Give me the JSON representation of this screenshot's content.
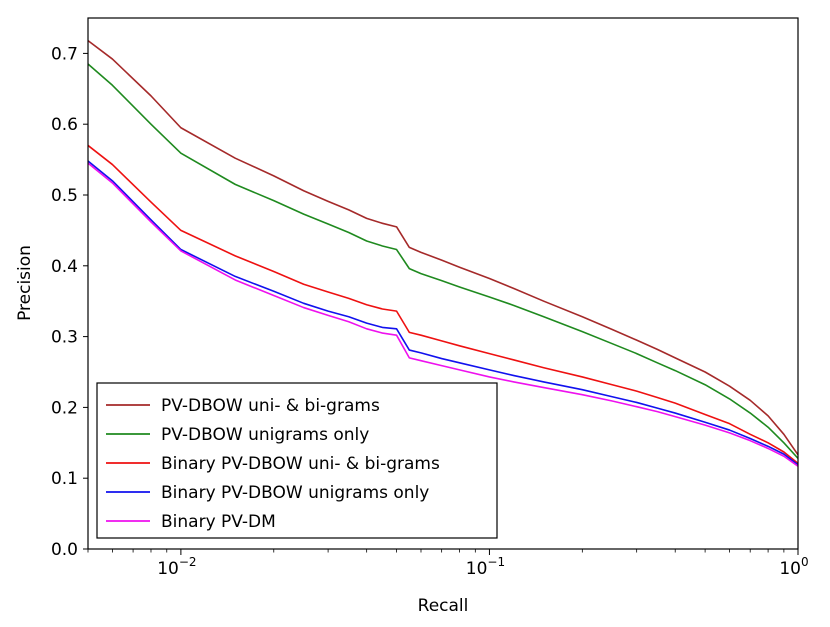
{
  "chart_data": {
    "type": "line",
    "title": "",
    "xlabel": "Recall",
    "ylabel": "Precision",
    "xscale": "log",
    "xlim": [
      0.005,
      1.0
    ],
    "ylim": [
      0.0,
      0.75
    ],
    "grid": false,
    "legend_position": "lower-left",
    "x_ticks": [
      {
        "value": 0.01,
        "base": "10",
        "exp": "−2"
      },
      {
        "value": 0.1,
        "base": "10",
        "exp": "−1"
      },
      {
        "value": 1.0,
        "base": "10",
        "exp": "0"
      }
    ],
    "y_ticks": [
      {
        "value": 0.0,
        "label": "0.0"
      },
      {
        "value": 0.1,
        "label": "0.1"
      },
      {
        "value": 0.2,
        "label": "0.2"
      },
      {
        "value": 0.3,
        "label": "0.3"
      },
      {
        "value": 0.4,
        "label": "0.4"
      },
      {
        "value": 0.5,
        "label": "0.5"
      },
      {
        "value": 0.6,
        "label": "0.6"
      },
      {
        "value": 0.7,
        "label": "0.7"
      }
    ],
    "series": [
      {
        "name": "PV-DBOW uni- & bi-grams",
        "color": "#a52a2a",
        "points": [
          [
            0.005,
            0.718
          ],
          [
            0.006,
            0.692
          ],
          [
            0.008,
            0.64
          ],
          [
            0.01,
            0.595
          ],
          [
            0.015,
            0.552
          ],
          [
            0.02,
            0.527
          ],
          [
            0.025,
            0.506
          ],
          [
            0.03,
            0.491
          ],
          [
            0.035,
            0.479
          ],
          [
            0.04,
            0.467
          ],
          [
            0.045,
            0.46
          ],
          [
            0.05,
            0.455
          ],
          [
            0.055,
            0.426
          ],
          [
            0.06,
            0.419
          ],
          [
            0.07,
            0.408
          ],
          [
            0.08,
            0.398
          ],
          [
            0.1,
            0.382
          ],
          [
            0.12,
            0.368
          ],
          [
            0.15,
            0.35
          ],
          [
            0.2,
            0.328
          ],
          [
            0.25,
            0.31
          ],
          [
            0.3,
            0.295
          ],
          [
            0.35,
            0.282
          ],
          [
            0.4,
            0.27
          ],
          [
            0.5,
            0.25
          ],
          [
            0.6,
            0.23
          ],
          [
            0.7,
            0.21
          ],
          [
            0.8,
            0.188
          ],
          [
            0.9,
            0.162
          ],
          [
            1.0,
            0.133
          ]
        ]
      },
      {
        "name": "PV-DBOW unigrams only",
        "color": "#1f8a1f",
        "points": [
          [
            0.005,
            0.685
          ],
          [
            0.006,
            0.655
          ],
          [
            0.008,
            0.6
          ],
          [
            0.01,
            0.559
          ],
          [
            0.015,
            0.515
          ],
          [
            0.02,
            0.492
          ],
          [
            0.025,
            0.473
          ],
          [
            0.03,
            0.459
          ],
          [
            0.035,
            0.447
          ],
          [
            0.04,
            0.435
          ],
          [
            0.045,
            0.428
          ],
          [
            0.05,
            0.423
          ],
          [
            0.055,
            0.396
          ],
          [
            0.06,
            0.389
          ],
          [
            0.07,
            0.379
          ],
          [
            0.08,
            0.37
          ],
          [
            0.1,
            0.356
          ],
          [
            0.12,
            0.344
          ],
          [
            0.15,
            0.328
          ],
          [
            0.2,
            0.307
          ],
          [
            0.25,
            0.29
          ],
          [
            0.3,
            0.276
          ],
          [
            0.35,
            0.263
          ],
          [
            0.4,
            0.252
          ],
          [
            0.5,
            0.232
          ],
          [
            0.6,
            0.212
          ],
          [
            0.7,
            0.192
          ],
          [
            0.8,
            0.172
          ],
          [
            0.9,
            0.15
          ],
          [
            1.0,
            0.128
          ]
        ]
      },
      {
        "name": "Binary PV-DBOW uni- & bi-grams",
        "color": "#ee1111",
        "points": [
          [
            0.005,
            0.57
          ],
          [
            0.006,
            0.543
          ],
          [
            0.008,
            0.49
          ],
          [
            0.01,
            0.45
          ],
          [
            0.015,
            0.414
          ],
          [
            0.02,
            0.392
          ],
          [
            0.025,
            0.374
          ],
          [
            0.03,
            0.363
          ],
          [
            0.035,
            0.354
          ],
          [
            0.04,
            0.345
          ],
          [
            0.045,
            0.339
          ],
          [
            0.05,
            0.336
          ],
          [
            0.055,
            0.306
          ],
          [
            0.06,
            0.302
          ],
          [
            0.07,
            0.294
          ],
          [
            0.08,
            0.287
          ],
          [
            0.1,
            0.276
          ],
          [
            0.12,
            0.267
          ],
          [
            0.15,
            0.256
          ],
          [
            0.2,
            0.243
          ],
          [
            0.25,
            0.232
          ],
          [
            0.3,
            0.223
          ],
          [
            0.35,
            0.214
          ],
          [
            0.4,
            0.206
          ],
          [
            0.5,
            0.19
          ],
          [
            0.6,
            0.177
          ],
          [
            0.7,
            0.162
          ],
          [
            0.8,
            0.15
          ],
          [
            0.9,
            0.137
          ],
          [
            1.0,
            0.121
          ]
        ]
      },
      {
        "name": "Binary PV-DBOW unigrams only",
        "color": "#1111ee",
        "points": [
          [
            0.005,
            0.548
          ],
          [
            0.006,
            0.52
          ],
          [
            0.008,
            0.465
          ],
          [
            0.01,
            0.423
          ],
          [
            0.015,
            0.385
          ],
          [
            0.02,
            0.364
          ],
          [
            0.025,
            0.347
          ],
          [
            0.03,
            0.336
          ],
          [
            0.035,
            0.328
          ],
          [
            0.04,
            0.319
          ],
          [
            0.045,
            0.313
          ],
          [
            0.05,
            0.311
          ],
          [
            0.055,
            0.281
          ],
          [
            0.06,
            0.277
          ],
          [
            0.07,
            0.269
          ],
          [
            0.08,
            0.263
          ],
          [
            0.1,
            0.253
          ],
          [
            0.12,
            0.245
          ],
          [
            0.15,
            0.236
          ],
          [
            0.2,
            0.225
          ],
          [
            0.25,
            0.215
          ],
          [
            0.3,
            0.207
          ],
          [
            0.35,
            0.199
          ],
          [
            0.4,
            0.192
          ],
          [
            0.5,
            0.179
          ],
          [
            0.6,
            0.168
          ],
          [
            0.7,
            0.156
          ],
          [
            0.8,
            0.145
          ],
          [
            0.9,
            0.134
          ],
          [
            1.0,
            0.119
          ]
        ]
      },
      {
        "name": "Binary PV-DM",
        "color": "#ee11ee",
        "points": [
          [
            0.005,
            0.545
          ],
          [
            0.006,
            0.517
          ],
          [
            0.008,
            0.462
          ],
          [
            0.01,
            0.421
          ],
          [
            0.015,
            0.38
          ],
          [
            0.02,
            0.358
          ],
          [
            0.025,
            0.341
          ],
          [
            0.03,
            0.33
          ],
          [
            0.035,
            0.321
          ],
          [
            0.04,
            0.311
          ],
          [
            0.045,
            0.305
          ],
          [
            0.05,
            0.302
          ],
          [
            0.055,
            0.27
          ],
          [
            0.06,
            0.266
          ],
          [
            0.07,
            0.259
          ],
          [
            0.08,
            0.253
          ],
          [
            0.1,
            0.243
          ],
          [
            0.12,
            0.236
          ],
          [
            0.15,
            0.228
          ],
          [
            0.2,
            0.218
          ],
          [
            0.25,
            0.209
          ],
          [
            0.3,
            0.201
          ],
          [
            0.35,
            0.194
          ],
          [
            0.4,
            0.187
          ],
          [
            0.5,
            0.175
          ],
          [
            0.6,
            0.164
          ],
          [
            0.7,
            0.153
          ],
          [
            0.8,
            0.142
          ],
          [
            0.9,
            0.131
          ],
          [
            1.0,
            0.117
          ]
        ]
      }
    ]
  }
}
